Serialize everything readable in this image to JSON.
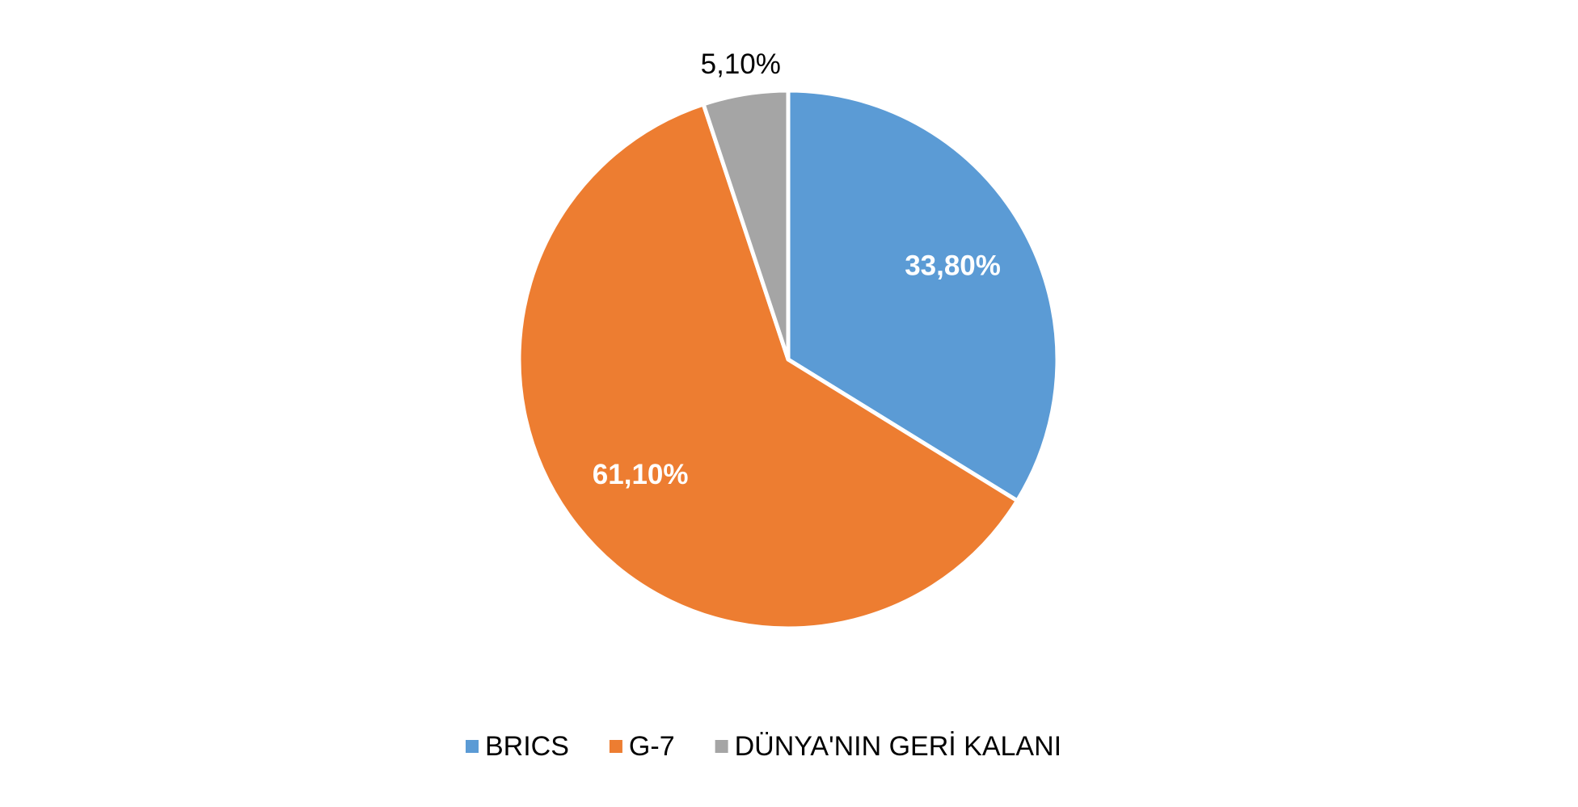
{
  "chart_data": {
    "type": "pie",
    "categories": [
      "BRICS",
      "G-7",
      "DÜNYA'NIN GERİ KALANI"
    ],
    "values": [
      33.8,
      61.1,
      5.1
    ],
    "value_labels": [
      "33,80%",
      "61,10%",
      "5,10%"
    ],
    "colors": [
      "#5b9bd5",
      "#ed7d31",
      "#a5a5a5"
    ],
    "legend": "bottom"
  }
}
